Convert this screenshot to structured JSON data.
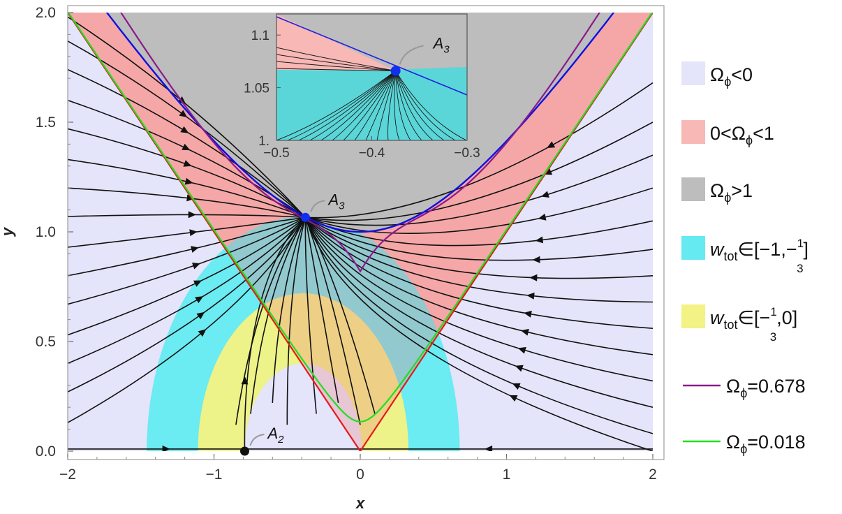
{
  "chart_data": {
    "type": "phase-portrait",
    "xlabel": "x",
    "ylabel": "y",
    "xlim": [
      -2,
      2
    ],
    "ylim": [
      0,
      2
    ],
    "xticks": [
      "−2",
      "−1",
      "0",
      "1",
      "2"
    ],
    "yticks": [
      "0.0",
      "0.5",
      "1.0",
      "1.5",
      "2.0"
    ],
    "regions": [
      {
        "label": "Ωϕ<0",
        "color": "#e4e4fa"
      },
      {
        "label": "0<Ωϕ<1",
        "color": "#f7b8b6"
      },
      {
        "label": "Ωϕ>1",
        "color": "#bdbdbd"
      },
      {
        "label": "w_tot∈[−1,−1/3]",
        "color": "#66eaf2"
      },
      {
        "label": "w_tot∈[−1/3,0]",
        "color": "#f2f285"
      }
    ],
    "curves": [
      {
        "label": "Ωϕ=0.678",
        "color": "#8b1a8b"
      },
      {
        "label": "Ωϕ=0.018",
        "color": "#22dd22"
      }
    ],
    "boundary_colors": {
      "omega_one": "#1010e0",
      "omega_zero": "#e51b1b"
    },
    "critical_points": [
      {
        "name": "A2",
        "x": -0.79,
        "y": 0.0,
        "color": "#111111"
      },
      {
        "name": "A3",
        "x": -0.375,
        "y": 1.066,
        "color": "#1030f0"
      }
    ],
    "inset": {
      "xlim": [
        -0.5,
        -0.3
      ],
      "ylim": [
        1.0,
        1.12
      ],
      "xticks": [
        "−0.5",
        "−0.4",
        "−0.3"
      ],
      "yticks": [
        "1.",
        "1.05",
        "1.1"
      ],
      "point_label": "A3"
    }
  },
  "legend": [
    {
      "kind": "swatch",
      "color": "#e4e4fa",
      "parts": [
        {
          "t": "Ω",
          "s": "n"
        },
        {
          "t": "ϕ",
          "s": "sub"
        },
        {
          "t": "<0",
          "s": "n"
        }
      ]
    },
    {
      "kind": "swatch",
      "color": "#f7b8b6",
      "parts": [
        {
          "t": "0<Ω",
          "s": "n"
        },
        {
          "t": "ϕ",
          "s": "sub"
        },
        {
          "t": "<1",
          "s": "n"
        }
      ]
    },
    {
      "kind": "swatch",
      "color": "#bdbdbd",
      "parts": [
        {
          "t": "Ω",
          "s": "n"
        },
        {
          "t": "ϕ",
          "s": "sub"
        },
        {
          "t": ">1",
          "s": "n"
        }
      ]
    },
    {
      "kind": "swatch",
      "color": "#66eaf2",
      "parts": [
        {
          "t": "w",
          "s": "it"
        },
        {
          "t": "tot",
          "s": "sub"
        },
        {
          "t": "∈[−1,−",
          "s": "n"
        },
        {
          "t": "1",
          "s": "num"
        },
        {
          "t": "3",
          "s": "den"
        },
        {
          "t": "]",
          "s": "n"
        }
      ]
    },
    {
      "kind": "swatch",
      "color": "#f2f285",
      "parts": [
        {
          "t": "w",
          "s": "it"
        },
        {
          "t": "tot",
          "s": "sub"
        },
        {
          "t": "∈[−",
          "s": "n"
        },
        {
          "t": "1",
          "s": "num"
        },
        {
          "t": "3",
          "s": "den"
        },
        {
          "t": ",0]",
          "s": "n"
        }
      ]
    },
    {
      "kind": "line",
      "color": "#8b1a8b",
      "parts": [
        {
          "t": "Ω",
          "s": "n"
        },
        {
          "t": "ϕ",
          "s": "sub"
        },
        {
          "t": "=0.678",
          "s": "n"
        }
      ]
    },
    {
      "kind": "line",
      "color": "#22dd22",
      "parts": [
        {
          "t": "Ω",
          "s": "n"
        },
        {
          "t": "ϕ",
          "s": "sub"
        },
        {
          "t": "=0.018",
          "s": "n"
        }
      ]
    }
  ]
}
